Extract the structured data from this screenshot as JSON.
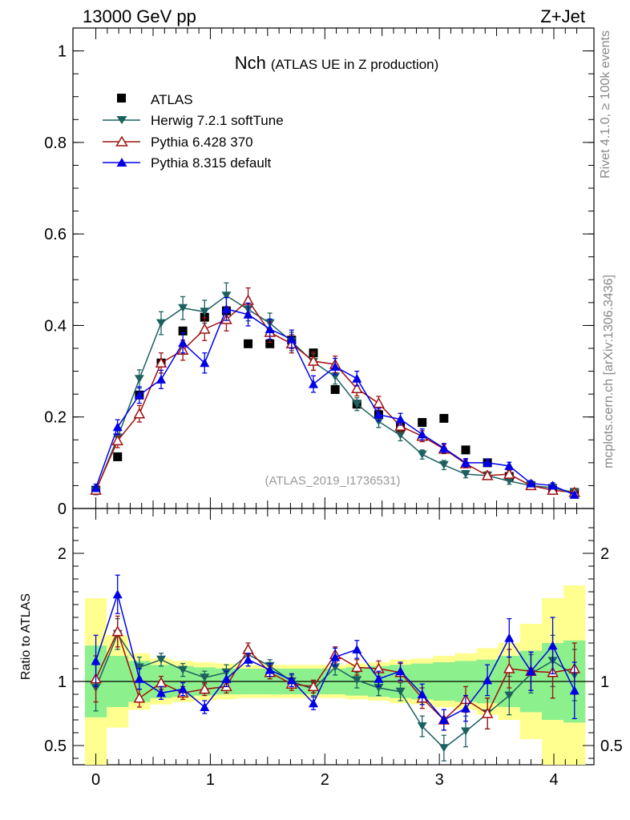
{
  "header": {
    "energy_label": "13000 GeV pp",
    "process_label": "Z+Jet",
    "title_main": "Nch",
    "title_sub": "(ATLAS UE in Z production)",
    "analysis_label": "(ATLAS_2019_I1736531)",
    "side_label_top": "Rivet 4.1.0, ≥ 100k events",
    "side_label_bottom": "mcplots.cern.ch [arXiv:1306.3436]"
  },
  "colors": {
    "atlas": "#000000",
    "herwig": "#1c6060",
    "pythia6": "#a01010",
    "pythia8": "#0000e6",
    "band_inner": "#8cf08c",
    "band_outer": "#ffff90"
  },
  "chart_data": [
    {
      "type": "scatter",
      "name": "main",
      "title": "Nch (ATLAS UE in Z production)",
      "xlabel": "",
      "ylabel": "",
      "xlim": [
        -0.2,
        4.35
      ],
      "ylim": [
        0,
        1.05
      ],
      "yticks": [
        0,
        0.2,
        0.4,
        0.6,
        0.8,
        1
      ],
      "ytick_labels": [
        "0",
        "0.2",
        "0.4",
        "0.6",
        "0.8",
        "1"
      ],
      "legend_position": "top-left",
      "x": [
        0,
        0.19,
        0.38,
        0.57,
        0.76,
        0.95,
        1.14,
        1.33,
        1.52,
        1.71,
        1.9,
        2.09,
        2.28,
        2.47,
        2.66,
        2.85,
        3.04,
        3.23,
        3.42,
        3.61,
        3.8,
        3.99,
        4.18
      ],
      "series": [
        {
          "name": "ATLAS",
          "values": [
            0.04,
            0.113,
            0.248,
            0.318,
            0.388,
            0.418,
            0.432,
            0.36,
            0.36,
            0.368,
            0.34,
            0.26,
            0.228,
            0.205,
            0.178,
            0.188,
            0.197,
            0.128,
            0.1,
            0.07,
            0.05,
            0.04,
            0.035
          ]
        },
        {
          "name": "Herwig 7.2.1 softTune",
          "values": [
            0.038,
            0.155,
            0.283,
            0.405,
            0.438,
            0.43,
            0.465,
            0.435,
            0.405,
            0.365,
            0.32,
            0.288,
            0.228,
            0.19,
            0.16,
            0.118,
            0.095,
            0.075,
            0.072,
            0.06,
            0.05,
            0.045,
            0.035
          ]
        },
        {
          "name": "Pythia 6.428 370",
          "values": [
            0.04,
            0.148,
            0.207,
            0.318,
            0.346,
            0.392,
            0.413,
            0.455,
            0.385,
            0.36,
            0.322,
            0.315,
            0.262,
            0.23,
            0.18,
            0.158,
            0.13,
            0.098,
            0.072,
            0.075,
            0.05,
            0.04,
            0.035
          ]
        },
        {
          "name": "Pythia 8.315 default",
          "values": [
            0.045,
            0.178,
            0.248,
            0.282,
            0.362,
            0.318,
            0.436,
            0.424,
            0.392,
            0.37,
            0.272,
            0.31,
            0.284,
            0.205,
            0.195,
            0.162,
            0.132,
            0.1,
            0.1,
            0.093,
            0.055,
            0.05,
            0.03
          ]
        }
      ],
      "errors": {
        "Herwig 7.2.1 softTune": [
          0.008,
          0.015,
          0.02,
          0.025,
          0.025,
          0.025,
          0.028,
          0.025,
          0.022,
          0.02,
          0.018,
          0.016,
          0.014,
          0.013,
          0.012,
          0.01,
          0.01,
          0.008,
          0.008,
          0.007,
          0.006,
          0.006,
          0.005
        ],
        "Pythia 6.428 370": [
          0.008,
          0.015,
          0.018,
          0.022,
          0.022,
          0.025,
          0.025,
          0.027,
          0.022,
          0.02,
          0.02,
          0.018,
          0.016,
          0.015,
          0.013,
          0.012,
          0.01,
          0.009,
          0.008,
          0.008,
          0.006,
          0.006,
          0.005
        ],
        "Pythia 8.315 default": [
          0.008,
          0.016,
          0.018,
          0.02,
          0.022,
          0.022,
          0.025,
          0.025,
          0.022,
          0.02,
          0.018,
          0.018,
          0.016,
          0.014,
          0.013,
          0.012,
          0.01,
          0.009,
          0.008,
          0.008,
          0.006,
          0.006,
          0.005
        ]
      }
    },
    {
      "type": "scatter",
      "name": "ratio",
      "xlabel": "",
      "ylabel": "Ratio to ATLAS",
      "xlim": [
        -0.2,
        4.35
      ],
      "ylim": [
        0.35,
        2.35
      ],
      "yticks": [
        0.5,
        1,
        2
      ],
      "ytick_labels": [
        "0.5",
        "1",
        "2"
      ],
      "xticks": [
        0,
        1,
        2,
        3,
        4
      ],
      "xtick_labels": [
        "0",
        "1",
        "2",
        "3",
        "4"
      ],
      "reference_line": 1,
      "x": [
        0,
        0.19,
        0.38,
        0.57,
        0.76,
        0.95,
        1.14,
        1.33,
        1.52,
        1.71,
        1.9,
        2.09,
        2.28,
        2.47,
        2.66,
        2.85,
        3.04,
        3.23,
        3.42,
        3.61,
        3.8,
        3.99,
        4.18
      ],
      "bands": {
        "inner_half_width": [
          0.28,
          0.2,
          0.16,
          0.13,
          0.12,
          0.11,
          0.1,
          0.1,
          0.1,
          0.1,
          0.1,
          0.1,
          0.11,
          0.12,
          0.13,
          0.14,
          0.15,
          0.16,
          0.17,
          0.2,
          0.24,
          0.3,
          0.32
        ],
        "outer_half_width": [
          0.65,
          0.36,
          0.22,
          0.18,
          0.16,
          0.15,
          0.14,
          0.13,
          0.13,
          0.13,
          0.13,
          0.13,
          0.14,
          0.15,
          0.17,
          0.18,
          0.2,
          0.22,
          0.26,
          0.3,
          0.45,
          0.65,
          0.75
        ]
      },
      "series": [
        {
          "name": "Herwig 7.2.1 softTune",
          "values": [
            0.95,
            1.37,
            1.11,
            1.17,
            1.09,
            1.03,
            1.07,
            1.21,
            1.12,
            1.0,
            0.94,
            1.11,
            1.01,
            0.95,
            0.92,
            0.65,
            0.48,
            0.61,
            0.75,
            0.89,
            1.06,
            1.16,
            1.05
          ]
        },
        {
          "name": "Pythia 6.428 370",
          "values": [
            1.02,
            1.39,
            0.87,
            0.99,
            0.91,
            0.94,
            0.96,
            1.25,
            1.07,
            0.98,
            0.96,
            1.21,
            1.11,
            1.1,
            1.07,
            0.87,
            0.7,
            0.86,
            0.75,
            1.1,
            1.08,
            1.07,
            1.1
          ]
        },
        {
          "name": "Pythia 8.315 default",
          "values": [
            1.16,
            1.68,
            1.02,
            0.91,
            0.94,
            0.8,
            1.02,
            1.17,
            1.09,
            1.01,
            0.83,
            1.19,
            1.25,
            1.02,
            1.08,
            0.9,
            0.7,
            0.79,
            1.01,
            1.34,
            1.08,
            1.28,
            0.93
          ]
        }
      ],
      "errors": {
        "Herwig 7.2.1 softTune": [
          0.18,
          0.12,
          0.08,
          0.05,
          0.05,
          0.05,
          0.06,
          0.05,
          0.05,
          0.05,
          0.05,
          0.06,
          0.06,
          0.06,
          0.07,
          0.08,
          0.1,
          0.12,
          0.12,
          0.15,
          0.15,
          0.2,
          0.2
        ],
        "Pythia 6.428 370": [
          0.18,
          0.12,
          0.07,
          0.05,
          0.05,
          0.05,
          0.05,
          0.05,
          0.05,
          0.05,
          0.05,
          0.06,
          0.06,
          0.06,
          0.07,
          0.08,
          0.08,
          0.1,
          0.12,
          0.15,
          0.15,
          0.2,
          0.2
        ],
        "Pythia 8.315 default": [
          0.2,
          0.15,
          0.08,
          0.05,
          0.05,
          0.05,
          0.06,
          0.05,
          0.05,
          0.05,
          0.05,
          0.07,
          0.07,
          0.06,
          0.07,
          0.08,
          0.08,
          0.1,
          0.12,
          0.15,
          0.15,
          0.22,
          0.22
        ]
      }
    }
  ]
}
